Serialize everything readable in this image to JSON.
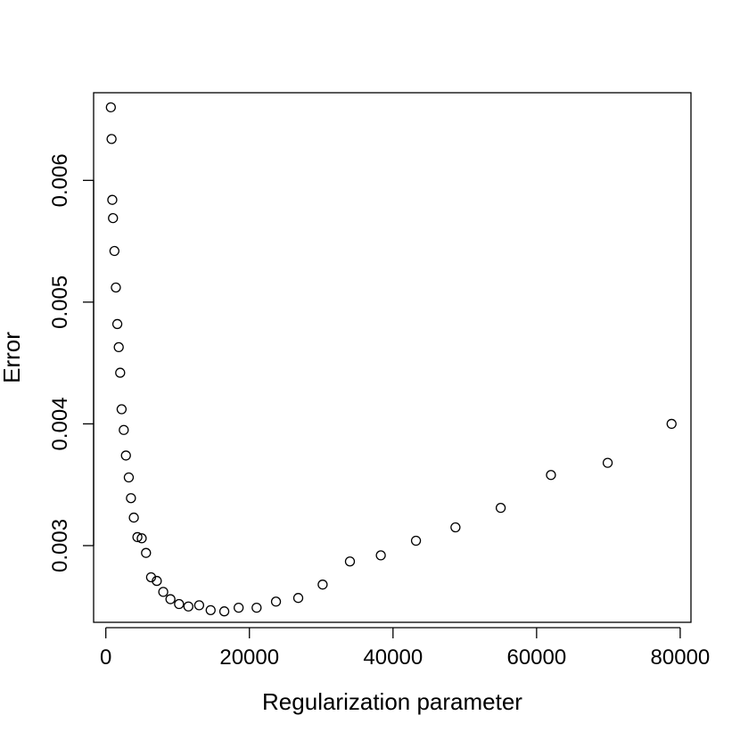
{
  "chart_data": {
    "type": "scatter",
    "xlabel": "Regularization parameter",
    "ylabel": "Error",
    "xlim": [
      -1700,
      81500
    ],
    "ylim": [
      0.00237,
      0.00672
    ],
    "xticks": [
      0,
      20000,
      40000,
      60000,
      80000
    ],
    "xtick_labels": [
      "0",
      "20000",
      "40000",
      "60000",
      "80000"
    ],
    "yticks": [
      0.003,
      0.004,
      0.005,
      0.006
    ],
    "ytick_labels": [
      "0.003",
      "0.004",
      "0.005",
      "0.006"
    ],
    "grid": false,
    "marker": "open-circle",
    "marker_color": "#000000",
    "points": [
      {
        "x": 700,
        "y": 0.0066
      },
      {
        "x": 800,
        "y": 0.00634
      },
      {
        "x": 900,
        "y": 0.00584
      },
      {
        "x": 1000,
        "y": 0.00569
      },
      {
        "x": 1200,
        "y": 0.00542
      },
      {
        "x": 1400,
        "y": 0.00512
      },
      {
        "x": 1600,
        "y": 0.00482
      },
      {
        "x": 1800,
        "y": 0.00463
      },
      {
        "x": 2000,
        "y": 0.00442
      },
      {
        "x": 2200,
        "y": 0.00412
      },
      {
        "x": 2500,
        "y": 0.00395
      },
      {
        "x": 2800,
        "y": 0.00374
      },
      {
        "x": 3200,
        "y": 0.00356
      },
      {
        "x": 3500,
        "y": 0.00339
      },
      {
        "x": 3900,
        "y": 0.00323
      },
      {
        "x": 4400,
        "y": 0.00307
      },
      {
        "x": 5000,
        "y": 0.00306
      },
      {
        "x": 5600,
        "y": 0.00294
      },
      {
        "x": 6300,
        "y": 0.00274
      },
      {
        "x": 7100,
        "y": 0.00271
      },
      {
        "x": 8000,
        "y": 0.00262
      },
      {
        "x": 9000,
        "y": 0.00256
      },
      {
        "x": 10200,
        "y": 0.00252
      },
      {
        "x": 11500,
        "y": 0.0025
      },
      {
        "x": 13000,
        "y": 0.00251
      },
      {
        "x": 14600,
        "y": 0.00247
      },
      {
        "x": 16500,
        "y": 0.00246
      },
      {
        "x": 18500,
        "y": 0.00249
      },
      {
        "x": 21000,
        "y": 0.00249
      },
      {
        "x": 23700,
        "y": 0.00254
      },
      {
        "x": 26800,
        "y": 0.00257
      },
      {
        "x": 30200,
        "y": 0.00268
      },
      {
        "x": 34000,
        "y": 0.00287
      },
      {
        "x": 38300,
        "y": 0.00292
      },
      {
        "x": 43200,
        "y": 0.00304
      },
      {
        "x": 48700,
        "y": 0.00315
      },
      {
        "x": 55000,
        "y": 0.00331
      },
      {
        "x": 62000,
        "y": 0.00358
      },
      {
        "x": 69900,
        "y": 0.00368
      },
      {
        "x": 78800,
        "y": 0.004
      }
    ]
  }
}
